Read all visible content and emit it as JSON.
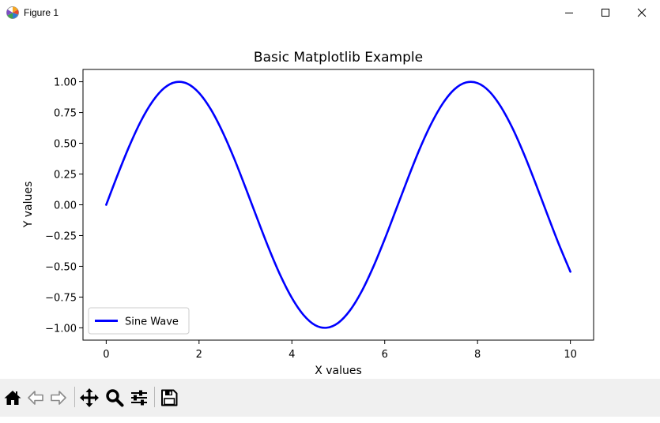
{
  "window": {
    "title": "Figure 1"
  },
  "icons": {
    "app": "matplotlib-icon",
    "minimize": "minimize-icon",
    "maximize": "maximize-icon",
    "close": "close-icon"
  },
  "toolbar": {
    "items": [
      {
        "name": "home",
        "icon": "home-icon"
      },
      {
        "name": "back",
        "icon": "back-arrow-icon"
      },
      {
        "name": "forward",
        "icon": "forward-arrow-icon"
      },
      {
        "name": "pan",
        "icon": "move-icon"
      },
      {
        "name": "zoom",
        "icon": "magnifier-icon"
      },
      {
        "name": "configure-subplots",
        "icon": "sliders-icon"
      },
      {
        "name": "save",
        "icon": "floppy-disk-icon"
      }
    ]
  },
  "chart_data": {
    "type": "line",
    "title": "Basic Matplotlib Example",
    "xlabel": "X values",
    "ylabel": "Y values",
    "xlim": [
      -0.5,
      10.5
    ],
    "ylim": [
      -1.1,
      1.1
    ],
    "xticks": [
      0,
      2,
      4,
      6,
      8,
      10
    ],
    "xtick_labels": [
      "0",
      "2",
      "4",
      "6",
      "8",
      "10"
    ],
    "yticks": [
      1.0,
      0.75,
      0.5,
      0.25,
      0.0,
      -0.25,
      -0.5,
      -0.75,
      -1.0
    ],
    "ytick_labels": [
      "1.00",
      "0.75",
      "0.50",
      "0.25",
      "0.00",
      "−0.25",
      "−0.50",
      "−0.75",
      "−1.00"
    ],
    "grid": false,
    "legend_position": "lower left",
    "series": [
      {
        "name": "Sine Wave",
        "color": "#0000ff",
        "x": [
          0,
          0.25,
          0.5,
          0.75,
          1.0,
          1.25,
          1.5,
          1.75,
          2.0,
          2.25,
          2.5,
          2.75,
          3.0,
          3.25,
          3.5,
          3.75,
          4.0,
          4.25,
          4.5,
          4.75,
          5.0,
          5.25,
          5.5,
          5.75,
          6.0,
          6.25,
          6.5,
          6.75,
          7.0,
          7.25,
          7.5,
          7.75,
          8.0,
          8.25,
          8.5,
          8.75,
          9.0,
          9.25,
          9.5,
          9.75,
          10.0
        ],
        "y": [
          0.0,
          0.247,
          0.479,
          0.682,
          0.841,
          0.949,
          0.997,
          0.984,
          0.909,
          0.778,
          0.598,
          0.382,
          0.141,
          -0.108,
          -0.351,
          -0.572,
          -0.757,
          -0.895,
          -0.978,
          -0.999,
          -0.959,
          -0.859,
          -0.706,
          -0.508,
          -0.279,
          -0.033,
          0.215,
          0.451,
          0.657,
          0.823,
          0.938,
          0.994,
          0.989,
          0.923,
          0.798,
          0.625,
          0.412,
          0.174,
          -0.075,
          -0.319,
          -0.544
        ]
      }
    ]
  }
}
